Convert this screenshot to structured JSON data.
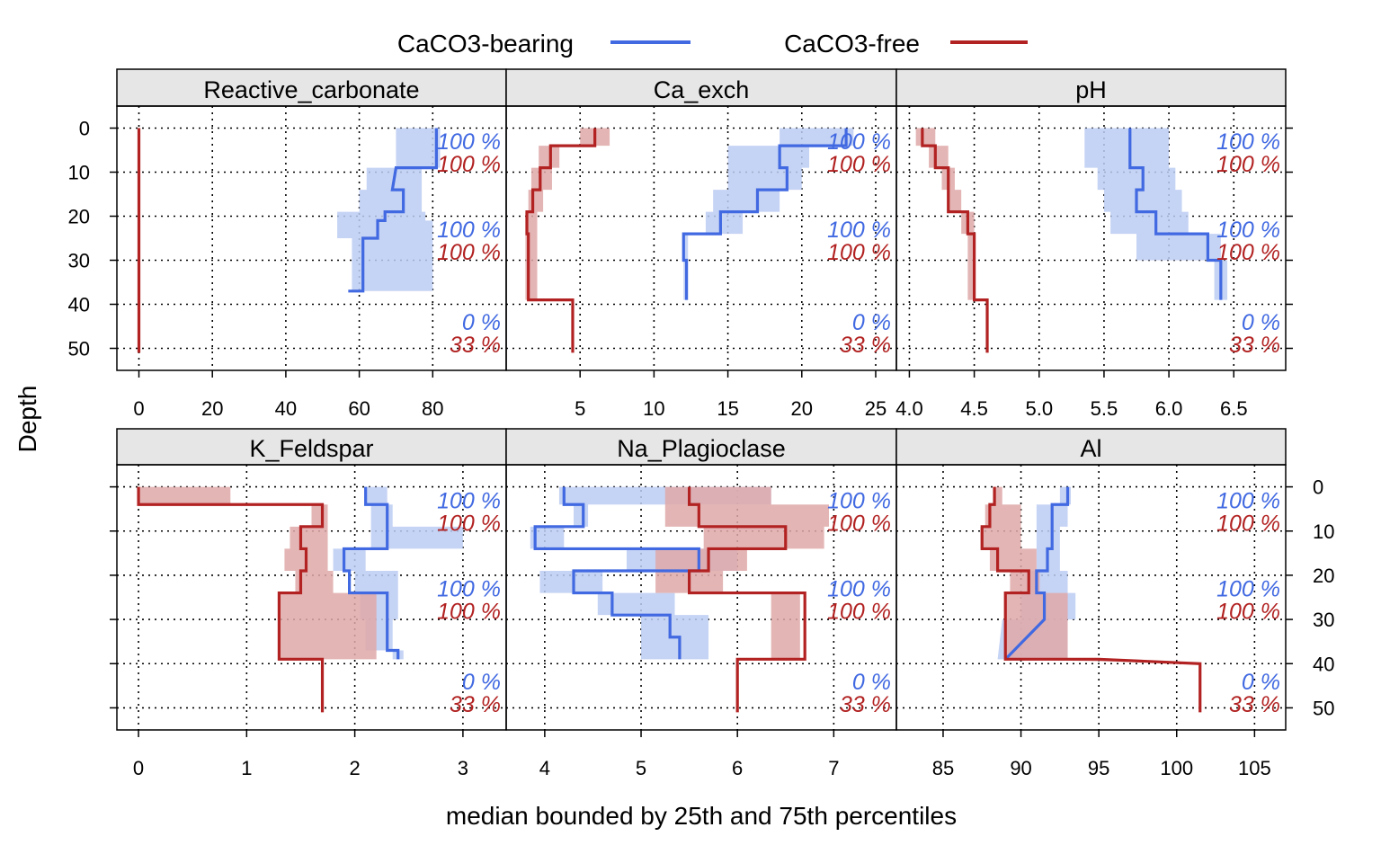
{
  "legend": {
    "items": [
      {
        "label": "CaCO3-bearing",
        "color": "#4169E1"
      },
      {
        "label": "CaCO3-free",
        "color": "#B22222"
      }
    ]
  },
  "y_axis_label": "Depth",
  "x_axis_label": "median bounded by 25th and 75th percentiles",
  "colors": {
    "bearing_line": "#4169E1",
    "bearing_band": "#BBCBF2",
    "free_line": "#B22222",
    "free_band": "#DFA8A8",
    "strip_bg": "#E6E6E6"
  },
  "chart_data": {
    "type": "line",
    "layout_note_free": true,
    "ylim": [
      55,
      -5
    ],
    "yticks": [
      0,
      10,
      20,
      30,
      40,
      50
    ],
    "grid": true,
    "series_names": [
      "CaCO3-bearing",
      "CaCO3-free"
    ],
    "percent_labels": {
      "bearing": [
        "100 %",
        "100 %",
        "0 %"
      ],
      "free": [
        "100 %",
        "100 %",
        "33 %"
      ],
      "depth": [
        3,
        23,
        44
      ]
    },
    "panels": [
      {
        "name": "Reactive_carbonate",
        "xlim": [
          -6,
          100
        ],
        "xticks": [
          0,
          20,
          40,
          60,
          80
        ],
        "series": [
          {
            "name": "CaCO3-bearing",
            "depth": [
              0,
              9,
              9,
              14,
              14,
              19,
              19,
              21,
              21,
              25,
              25,
              37,
              37
            ],
            "median": [
              81,
              81,
              70,
              69,
              72,
              72,
              67,
              67,
              65,
              65,
              61,
              61,
              57
            ],
            "p25": [
              70,
              70,
              62,
              62,
              60,
              60,
              54,
              54,
              54,
              54,
              58,
              58,
              55
            ],
            "p75": [
              82,
              82,
              77,
              77,
              77,
              77,
              78,
              78,
              80,
              80,
              80,
              80,
              80
            ]
          },
          {
            "name": "CaCO3-free",
            "depth": [
              0,
              51
            ],
            "median": [
              0,
              0
            ],
            "p25": [
              0,
              0
            ],
            "p75": [
              0,
              0
            ]
          }
        ]
      },
      {
        "name": "Ca_exch",
        "xlim": [
          0,
          26.4
        ],
        "xticks": [
          5,
          10,
          15,
          20,
          25
        ],
        "xtick_labels_present": true,
        "series": [
          {
            "name": "CaCO3-bearing",
            "depth": [
              0,
              4,
              4,
              9,
              9,
              14,
              14,
              19,
              19,
              24,
              24,
              30,
              30,
              39
            ],
            "median": [
              23,
              23,
              18.5,
              18.5,
              19,
              19,
              17,
              17,
              14.5,
              14.5,
              12,
              12,
              12.2,
              12.2
            ],
            "p25": [
              18.5,
              18.5,
              15,
              15,
              15,
              15,
              14,
              14,
              13.5,
              13.5,
              12,
              12,
              12,
              12
            ],
            "p75": [
              23.5,
              23.5,
              20.5,
              20.5,
              20,
              20,
              18.5,
              18.5,
              16,
              16,
              12.3,
              12.3,
              12.3,
              12.3
            ]
          },
          {
            "name": "CaCO3-free",
            "depth": [
              0,
              4,
              4,
              9,
              9,
              14,
              14,
              19,
              19,
              24,
              24,
              39,
              39,
              51
            ],
            "median": [
              6,
              6,
              3,
              3,
              2.3,
              2.3,
              1.8,
              1.8,
              1.4,
              1.4,
              1.5,
              1.5,
              4.5,
              4.5
            ],
            "p25": [
              5,
              5,
              2.2,
              2.2,
              1.7,
              1.7,
              1.5,
              1.5,
              1.3,
              1.3,
              1.3,
              1.3,
              4.5,
              4.5
            ],
            "p75": [
              7,
              7,
              3.6,
              3.6,
              3.1,
              3.1,
              2.5,
              2.5,
              2.1,
              2.1,
              2.1,
              2.1,
              4.5,
              4.5
            ]
          }
        ]
      },
      {
        "name": "pH",
        "xlim": [
          3.9,
          6.9
        ],
        "xticks": [
          4.0,
          4.5,
          5.0,
          5.5,
          6.0,
          6.5
        ],
        "series": [
          {
            "name": "CaCO3-bearing",
            "depth": [
              0,
              9,
              9,
              14,
              14,
              19,
              19,
              24,
              24,
              30,
              30,
              39
            ],
            "median": [
              5.7,
              5.7,
              5.8,
              5.8,
              5.75,
              5.75,
              5.9,
              5.9,
              6.3,
              6.3,
              6.4,
              6.4
            ],
            "p25": [
              5.35,
              5.35,
              5.45,
              5.45,
              5.5,
              5.5,
              5.55,
              5.55,
              5.75,
              5.75,
              6.35,
              6.35
            ],
            "p75": [
              6.0,
              6.0,
              6.05,
              6.05,
              6.1,
              6.1,
              6.15,
              6.15,
              6.4,
              6.4,
              6.45,
              6.45
            ]
          },
          {
            "name": "CaCO3-free",
            "depth": [
              0,
              4,
              4,
              9,
              9,
              14,
              14,
              19,
              19,
              24,
              24,
              39,
              39,
              51
            ],
            "median": [
              4.1,
              4.1,
              4.2,
              4.2,
              4.3,
              4.3,
              4.3,
              4.3,
              4.45,
              4.45,
              4.5,
              4.5,
              4.6,
              4.6
            ],
            "p25": [
              4.05,
              4.05,
              4.15,
              4.15,
              4.25,
              4.25,
              4.3,
              4.3,
              4.4,
              4.4,
              4.45,
              4.45,
              4.6,
              4.6
            ],
            "p75": [
              4.2,
              4.2,
              4.3,
              4.3,
              4.35,
              4.35,
              4.4,
              4.4,
              4.5,
              4.5,
              4.5,
              4.5,
              4.6,
              4.6
            ]
          }
        ]
      },
      {
        "name": "K_Feldspar",
        "xlim": [
          -0.2,
          3.4
        ],
        "xticks": [
          0,
          1,
          2,
          3
        ],
        "series": [
          {
            "name": "CaCO3-bearing",
            "depth": [
              0,
              4,
              4,
              9,
              9,
              14,
              14,
              19,
              19,
              24,
              24,
              30,
              30,
              37,
              37,
              39
            ],
            "median": [
              2.1,
              2.1,
              2.3,
              2.3,
              2.3,
              2.3,
              1.9,
              1.9,
              1.95,
              1.95,
              2.3,
              2.3,
              2.3,
              2.3,
              2.4,
              2.4
            ],
            "p25": [
              2.1,
              2.1,
              2.15,
              2.15,
              2.15,
              2.15,
              1.8,
              1.8,
              2.0,
              2.0,
              2.05,
              2.05,
              2.1,
              2.1,
              2.35,
              2.35
            ],
            "p75": [
              2.3,
              2.3,
              2.35,
              2.35,
              3.0,
              3.0,
              2.1,
              2.1,
              2.4,
              2.4,
              2.4,
              2.4,
              2.35,
              2.35,
              2.45,
              2.45
            ]
          },
          {
            "name": "CaCO3-free",
            "depth": [
              0,
              4,
              4,
              9,
              9,
              14,
              14,
              19,
              19,
              24,
              24,
              39,
              39,
              51
            ],
            "median": [
              0,
              0,
              1.7,
              1.7,
              1.5,
              1.5,
              1.55,
              1.55,
              1.5,
              1.5,
              1.3,
              1.3,
              1.7,
              1.7
            ],
            "p25": [
              0,
              0,
              1.6,
              1.6,
              1.4,
              1.4,
              1.35,
              1.35,
              1.45,
              1.45,
              1.3,
              1.3,
              1.7,
              1.7
            ],
            "p75": [
              0.85,
              0.85,
              1.75,
              1.75,
              1.75,
              1.75,
              1.75,
              1.75,
              1.8,
              1.8,
              2.2,
              2.2,
              1.7,
              1.7
            ]
          }
        ]
      },
      {
        "name": "Na_Plagioclase",
        "xlim": [
          3.6,
          7.65
        ],
        "xticks": [
          4,
          5,
          6,
          7
        ],
        "series": [
          {
            "name": "CaCO3-bearing",
            "depth": [
              0,
              4,
              4,
              9,
              9,
              14,
              14,
              19,
              19,
              24,
              24,
              29,
              29,
              34,
              34,
              39
            ],
            "median": [
              4.2,
              4.2,
              4.4,
              4.4,
              3.9,
              3.9,
              5.6,
              5.6,
              4.3,
              4.3,
              4.7,
              4.7,
              5.3,
              5.3,
              5.4,
              5.4
            ],
            "p25": [
              4.15,
              4.15,
              4.3,
              4.3,
              3.85,
              3.85,
              4.85,
              4.85,
              3.95,
              3.95,
              4.55,
              4.55,
              5.0,
              5.0,
              5.0,
              5.0
            ],
            "p75": [
              6.35,
              6.35,
              4.45,
              4.45,
              4.2,
              4.2,
              6.0,
              6.0,
              4.6,
              4.6,
              5.35,
              5.35,
              5.7,
              5.7,
              5.7,
              5.7
            ]
          },
          {
            "name": "CaCO3-free",
            "depth": [
              0,
              4,
              4,
              9,
              9,
              14,
              14,
              19,
              19,
              24,
              24,
              39,
              39,
              51
            ],
            "median": [
              5.5,
              5.5,
              5.6,
              5.6,
              6.5,
              6.5,
              5.7,
              5.7,
              5.5,
              5.5,
              6.7,
              6.7,
              6.0,
              6.0
            ],
            "p25": [
              5.25,
              5.25,
              5.25,
              5.25,
              5.65,
              5.65,
              5.15,
              5.15,
              5.15,
              5.15,
              6.35,
              6.35,
              6.0,
              6.0
            ],
            "p75": [
              6.35,
              6.35,
              6.95,
              6.95,
              6.9,
              6.9,
              6.1,
              6.1,
              5.85,
              5.85,
              6.65,
              6.65,
              6.0,
              6.0
            ]
          }
        ]
      },
      {
        "name": "Al",
        "xlim": [
          82,
          107
        ],
        "xticks": [
          85,
          90,
          95,
          100,
          105
        ],
        "series": [
          {
            "name": "CaCO3-bearing",
            "depth": [
              0,
              4,
              4,
              9,
              9,
              14,
              14,
              19,
              19,
              24,
              24,
              30,
              30,
              39
            ],
            "median": [
              93,
              93,
              92,
              92,
              92,
              92,
              91.7,
              91.7,
              91,
              91,
              91.5,
              91.5,
              91.5,
              89
            ],
            "p25": [
              92.5,
              92.5,
              91,
              91,
              91,
              91,
              91,
              91,
              90.5,
              90.5,
              90,
              90,
              88.8,
              88.5
            ],
            "p75": [
              93.2,
              93.2,
              93,
              93,
              92.5,
              92.5,
              92.5,
              92.5,
              93,
              93,
              93.5,
              93.5,
              93,
              93
            ]
          },
          {
            "name": "CaCO3-free",
            "depth": [
              0,
              4,
              4,
              9,
              9,
              14,
              14,
              19,
              19,
              24,
              24,
              39,
              39,
              40,
              40,
              51
            ],
            "median": [
              88.3,
              88.3,
              88,
              88,
              87.5,
              87.5,
              88.5,
              88.5,
              90.5,
              90.5,
              89,
              89,
              95,
              101.5,
              101.5,
              101.5
            ],
            "p25": [
              88.2,
              88.2,
              87.7,
              87.7,
              87.4,
              87.4,
              88,
              88,
              89.3,
              89.3,
              89,
              89,
              89,
              101.5,
              101.5,
              101.5
            ],
            "p75": [
              88.8,
              88.8,
              90,
              90,
              90,
              90,
              91,
              91,
              91.2,
              91.2,
              93,
              93,
              95,
              101.5,
              101.5,
              101.5
            ]
          }
        ]
      }
    ]
  }
}
